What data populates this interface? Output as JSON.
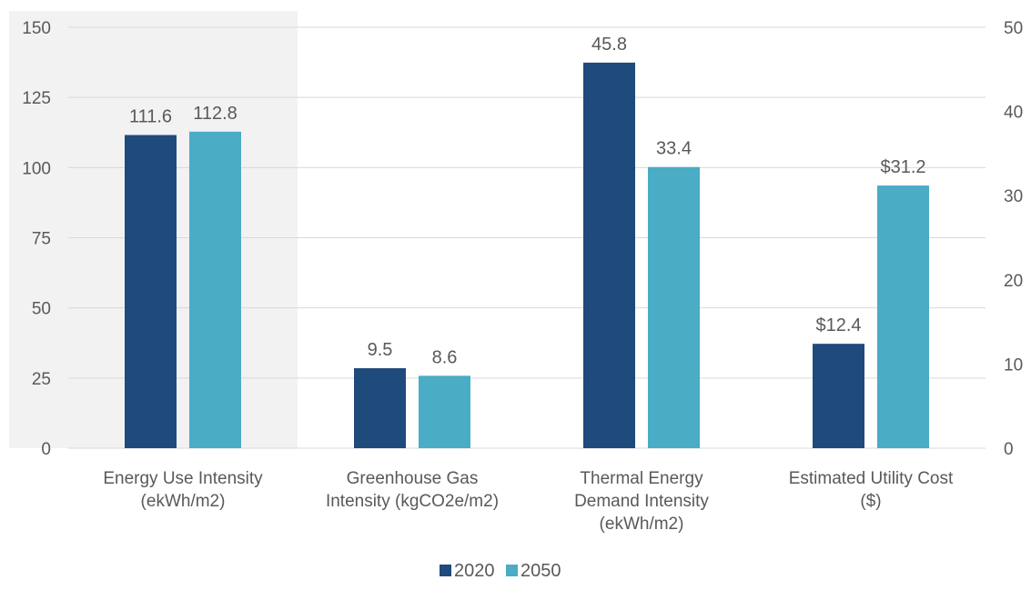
{
  "chart_data": {
    "type": "bar",
    "title": "",
    "categories": [
      [
        "Energy Use Intensity",
        "(ekWh/m2)"
      ],
      [
        "Greenhouse Gas",
        "Intensity (kgCO2e/m2)"
      ],
      [
        "Thermal Energy",
        "Demand Intensity",
        "(ekWh/m2)"
      ],
      [
        "Estimated Utility Cost",
        "($)"
      ]
    ],
    "series": [
      {
        "name": "2020",
        "color": "#1f4a7c",
        "values": [
          111.6,
          9.5,
          45.8,
          12.4
        ],
        "labels": [
          "111.6",
          "9.5",
          "45.8",
          "$12.4"
        ],
        "axis": [
          "left",
          "right",
          "right",
          "right"
        ]
      },
      {
        "name": "2050",
        "color": "#4bacc6",
        "values": [
          112.8,
          8.6,
          33.4,
          31.2
        ],
        "labels": [
          "112.8",
          "8.6",
          "33.4",
          "$31.2"
        ],
        "axis": [
          "left",
          "right",
          "right",
          "right"
        ]
      }
    ],
    "y_left": {
      "min": 0,
      "max": 150,
      "ticks": [
        0,
        25,
        50,
        75,
        100,
        125,
        150
      ]
    },
    "y_right": {
      "min": 0,
      "max": 50,
      "ticks": [
        0,
        10,
        20,
        30,
        40,
        50
      ]
    },
    "highlighted_category": 0,
    "highlight_color": "#f2f2f2",
    "grid": true,
    "legend_position": "bottom"
  }
}
